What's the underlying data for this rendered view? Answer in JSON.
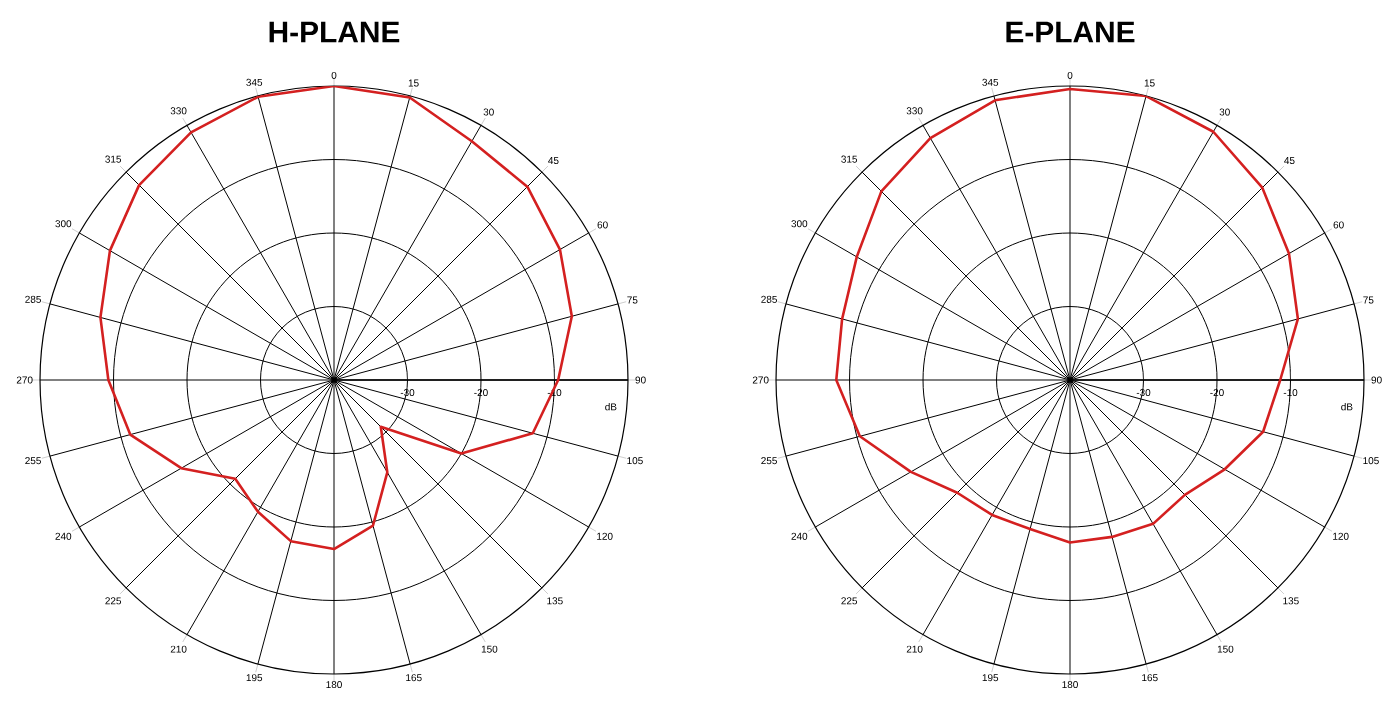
{
  "chart_data": [
    {
      "type": "radar",
      "title": "H-PLANE",
      "ylabel": "dB",
      "categories": [
        "0",
        "15",
        "30",
        "45",
        "60",
        "75",
        "90",
        "105",
        "120",
        "135",
        "150",
        "165",
        "180",
        "195",
        "210",
        "225",
        "240",
        "255",
        "270",
        "285",
        "300",
        "315",
        "330",
        "345"
      ],
      "ylim": [
        -40,
        0
      ],
      "yticks": [
        -30,
        -20,
        -10
      ],
      "grid": true,
      "series": [
        {
          "color": "#d42020",
          "values": [
            0,
            -0.2,
            -2.5,
            -2.8,
            -4.5,
            -6.5,
            -9.5,
            -12,
            -20,
            -31,
            -25.5,
            -19.5,
            -17,
            -17.3,
            -19.3,
            -21,
            -16,
            -11.3,
            -9.3,
            -7.1,
            -4.8,
            -2.5,
            -1.1,
            -0.1
          ]
        }
      ]
    },
    {
      "type": "radar",
      "title": "E-PLANE",
      "ylabel": "dB",
      "categories": [
        "0",
        "15",
        "30",
        "45",
        "60",
        "75",
        "90",
        "105",
        "120",
        "135",
        "150",
        "165",
        "180",
        "195",
        "210",
        "225",
        "240",
        "255",
        "270",
        "285",
        "300",
        "315",
        "330",
        "345"
      ],
      "ylim": [
        -40,
        0
      ],
      "yticks": [
        -30,
        -20,
        -10
      ],
      "grid": true,
      "series": [
        {
          "color": "#d42020",
          "values": [
            -0.4,
            0,
            -1,
            -3,
            -5.6,
            -7.9,
            -11.4,
            -12.8,
            -15.7,
            -17.9,
            -17.4,
            -17.9,
            -17.9,
            -19,
            -18.8,
            -18.3,
            -15,
            -10.4,
            -8.2,
            -7.9,
            -6.5,
            -3.7,
            -2,
            -0.6
          ]
        }
      ]
    }
  ]
}
